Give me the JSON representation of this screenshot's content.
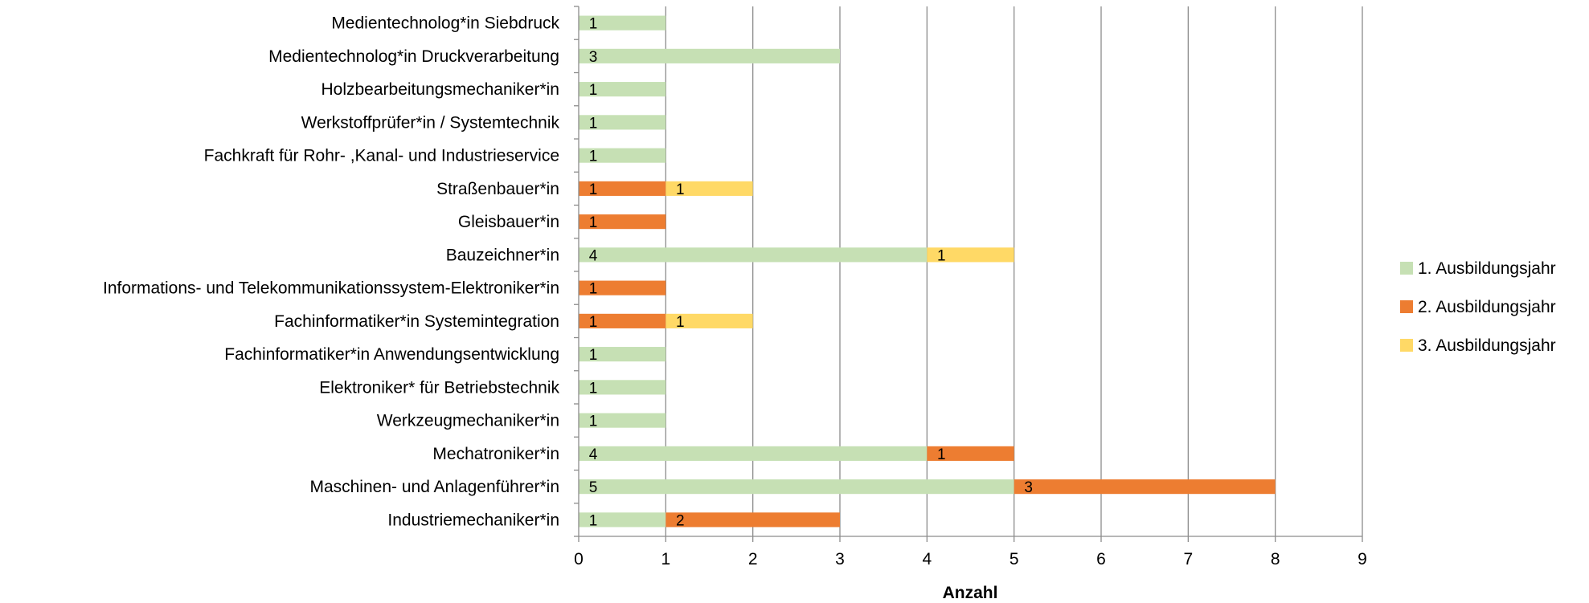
{
  "chart_data": {
    "type": "bar",
    "orientation": "horizontal",
    "stacked": true,
    "title": "",
    "xlabel": "Anzahl",
    "ylabel": "",
    "xlim": [
      0,
      9
    ],
    "x_ticks": [
      "0",
      "1",
      "2",
      "3",
      "4",
      "5",
      "6",
      "7",
      "8",
      "9"
    ],
    "grid": true,
    "legend_position": "right",
    "categories": [
      "Medientechnolog*in Siebdruck",
      "Medientechnolog*in Druckverarbeitung",
      "Holzbearbeitungsmechaniker*in",
      "Werkstoffprüfer*in / Systemtechnik",
      "Fachkraft für Rohr- ,Kanal- und Industrieservice",
      "Straßenbauer*in",
      "Gleisbauer*in",
      "Bauzeichner*in",
      "Informations- und Telekommunikationssystem-Elektroniker*in",
      "Fachinformatiker*in Systemintegration",
      "Fachinformatiker*in Anwendungsentwicklung",
      "Elektroniker* für Betriebstechnik",
      "Werkzeugmechaniker*in",
      "Mechatroniker*in",
      "Maschinen- und Anlagenführer*in",
      "Industriemechaniker*in"
    ],
    "series": [
      {
        "name": "1. Ausbildungsjahr",
        "color": "#c6e0b4",
        "values": [
          1,
          3,
          1,
          1,
          1,
          null,
          null,
          4,
          null,
          null,
          1,
          1,
          1,
          4,
          5,
          1
        ]
      },
      {
        "name": "2. Ausbildungsjahr",
        "color": "#ed7d31",
        "values": [
          null,
          null,
          null,
          null,
          null,
          1,
          1,
          null,
          1,
          1,
          null,
          null,
          null,
          1,
          3,
          2
        ]
      },
      {
        "name": "3. Ausbildungsjahr",
        "color": "#ffd966",
        "values": [
          null,
          null,
          null,
          null,
          null,
          1,
          null,
          1,
          null,
          1,
          null,
          null,
          null,
          null,
          null,
          null
        ]
      }
    ]
  }
}
